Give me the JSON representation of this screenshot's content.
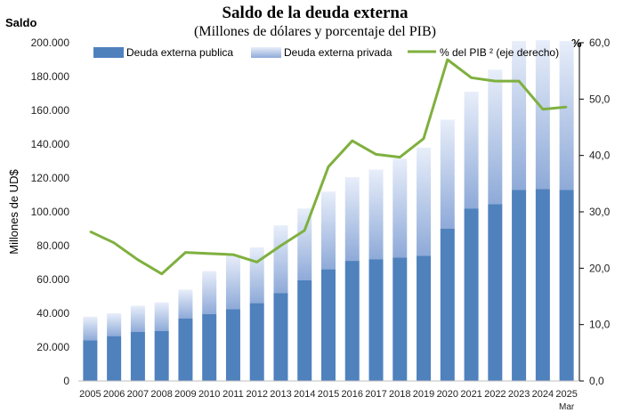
{
  "chart_data": {
    "type": "bar+line",
    "title": "Saldo de la deuda externa",
    "subtitle": "(Millones  de dólares y porcentaje del PIB)",
    "corner_label_left": "Saldo",
    "corner_label_right": "%",
    "ylabel": "Millones de UD$",
    "ylim": [
      0,
      200000
    ],
    "y2lim": [
      0,
      60
    ],
    "yticks": [
      "0",
      "20.000",
      "40.000",
      "60.000",
      "80.000",
      "100.000",
      "120.000",
      "140.000",
      "160.000",
      "180.000",
      "200.000"
    ],
    "y2ticks": [
      "0,0",
      "10,0",
      "20,0",
      "30,0",
      "40,0",
      "50,0",
      "60,0"
    ],
    "categories": [
      "2005",
      "2006",
      "2007",
      "2008",
      "2009",
      "2010",
      "2011",
      "2012",
      "2013",
      "2014",
      "2015",
      "2016",
      "2017",
      "2018",
      "2019",
      "2020",
      "2021",
      "2022",
      "2023",
      "2024",
      "2025"
    ],
    "last_category_note": "Mar",
    "series": [
      {
        "name": "Deuda externa publica",
        "kind": "stacked-bar",
        "color": "#4f81bd",
        "values": [
          24000,
          26500,
          29000,
          29500,
          37000,
          39500,
          42500,
          46000,
          52000,
          59500,
          66000,
          71000,
          72000,
          73000,
          74000,
          90000,
          102000,
          104500,
          113000,
          113500,
          113000
        ]
      },
      {
        "name": "Deuda externa privada",
        "kind": "stacked-bar",
        "color": "#aec3e6",
        "values": [
          14000,
          13500,
          15500,
          17000,
          17000,
          25500,
          32000,
          33000,
          40000,
          42500,
          46000,
          49500,
          53000,
          58500,
          64000,
          64500,
          69000,
          79500,
          88000,
          88000,
          88000
        ]
      },
      {
        "name": "% del PIB ² (eje derecho)",
        "kind": "line",
        "axis": "right",
        "color": "#7fb03f",
        "values": [
          26.5,
          24.5,
          21.5,
          19.0,
          22.8,
          22.6,
          22.4,
          21.1,
          24.0,
          26.7,
          38.0,
          42.6,
          40.2,
          39.7,
          43.0,
          57.0,
          53.8,
          53.2,
          53.2,
          48.2,
          48.6
        ]
      }
    ],
    "legend_position": "top",
    "grid": false
  }
}
